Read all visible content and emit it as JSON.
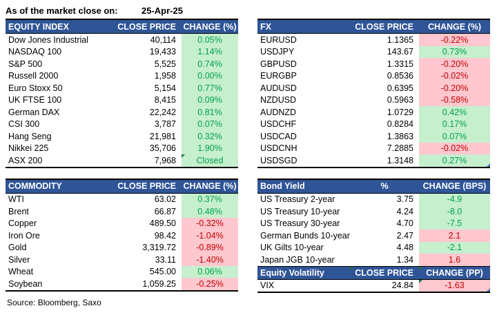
{
  "meta": {
    "title_label": "As of the market close on:",
    "date": "25-Apr-25",
    "source": "Source: Bloomberg, Saxo"
  },
  "colors": {
    "header_bg": "#2F5597",
    "positive_bg": "#C6EFCE",
    "positive_text": "#00A14B",
    "negative_bg": "#FFC7CE",
    "negative_text": "#C00000",
    "comment_marker_green": "#217346",
    "corner_marker_blue": "#4472C4",
    "border": "#000000"
  },
  "tables": {
    "equity_index": {
      "headers": [
        "EQUITY INDEX",
        "CLOSE PRICE",
        "CHANGE (%)"
      ],
      "rows": [
        {
          "label": "Dow Jones Industrial",
          "price": "40,114",
          "change": "0.05%",
          "dir": "pos"
        },
        {
          "label": "NASDAQ 100",
          "price": "19,433",
          "change": "1.14%",
          "dir": "pos"
        },
        {
          "label": "S&P 500",
          "price": "5,525",
          "change": "0.74%",
          "dir": "pos"
        },
        {
          "label": "Russell 2000",
          "price": "1,958",
          "change": "0.00%",
          "dir": "pos"
        },
        {
          "label": "Euro Stoxx 50",
          "price": "5,154",
          "change": "0.77%",
          "dir": "pos"
        },
        {
          "label": "UK FTSE 100",
          "price": "8,415",
          "change": "0.09%",
          "dir": "pos"
        },
        {
          "label": "German DAX",
          "price": "22,242",
          "change": "0.81%",
          "dir": "pos"
        },
        {
          "label": "CSI 300",
          "price": "3,787",
          "change": "0.07%",
          "dir": "pos"
        },
        {
          "label": "Hang Seng",
          "price": "21,981",
          "change": "0.32%",
          "dir": "pos"
        },
        {
          "label": "Nikkei 225",
          "price": "35,706",
          "change": "1.90%",
          "dir": "pos"
        },
        {
          "label": "ASX 200",
          "price": "7,968",
          "change": "Closed",
          "dir": "pos",
          "m_tl": true
        }
      ]
    },
    "fx": {
      "headers": [
        "FX",
        "CLOSE PRICE",
        "CHANGE (%)"
      ],
      "rows": [
        {
          "label": "EURUSD",
          "price": "1.1365",
          "change": "-0.22%",
          "dir": "neg"
        },
        {
          "label": "USDJPY",
          "price": "143.67",
          "change": "0.73%",
          "dir": "pos"
        },
        {
          "label": "GBPUSD",
          "price": "1.3315",
          "change": "-0.20%",
          "dir": "neg"
        },
        {
          "label": "EURGBP",
          "price": "0.8536",
          "change": "-0.02%",
          "dir": "neg"
        },
        {
          "label": "AUDUSD",
          "price": "0.6395",
          "change": "-0.20%",
          "dir": "neg"
        },
        {
          "label": "NZDUSD",
          "price": "0.5963",
          "change": "-0.58%",
          "dir": "neg"
        },
        {
          "label": "AUDNZD",
          "price": "1.0729",
          "change": "0.42%",
          "dir": "pos"
        },
        {
          "label": "USDCHF",
          "price": "0.8284",
          "change": "0.17%",
          "dir": "pos"
        },
        {
          "label": "USDCAD",
          "price": "1.3863",
          "change": "0.07%",
          "dir": "pos"
        },
        {
          "label": "USDCNH",
          "price": "7.2885",
          "change": "-0.02%",
          "dir": "neg"
        },
        {
          "label": "USDSGD",
          "price": "1.3148",
          "change": "0.27%",
          "dir": "pos",
          "m_br": true
        }
      ]
    },
    "commodity": {
      "headers": [
        "COMMODITY",
        "CLOSE PRICE",
        "CHANGE (%)"
      ],
      "rows": [
        {
          "label": "WTI",
          "price": "63.02",
          "change": "0.37%",
          "dir": "pos"
        },
        {
          "label": "Brent",
          "price": "66.87",
          "change": "0.48%",
          "dir": "pos"
        },
        {
          "label": "Copper",
          "price": "489.50",
          "change": "-0.32%",
          "dir": "neg"
        },
        {
          "label": "Iron Ore",
          "price": "98.42",
          "change": "-1.04%",
          "dir": "neg"
        },
        {
          "label": "Gold",
          "price": "3,319.72",
          "change": "-0.89%",
          "dir": "neg"
        },
        {
          "label": "Silver",
          "price": "33.11",
          "change": "-1.40%",
          "dir": "neg"
        },
        {
          "label": "Wheat",
          "price": "545.00",
          "change": "0.06%",
          "dir": "pos"
        },
        {
          "label": "Soybean",
          "price": "1,059.25",
          "change": "-0.25%",
          "dir": "neg"
        }
      ]
    },
    "bond_yield": {
      "headers": [
        "Bond Yield",
        "%",
        "CHANGE (BPS)"
      ],
      "rows": [
        {
          "label": "US Treasury 2-year",
          "price": "3.75",
          "change": "-4.9",
          "dir": "pos"
        },
        {
          "label": "US Treasury 10-year",
          "price": "4.24",
          "change": "-8.0",
          "dir": "pos"
        },
        {
          "label": "US Treasury 30-year",
          "price": "4.70",
          "change": "-7.5",
          "dir": "pos"
        },
        {
          "label": "German Bunds 10-year",
          "price": "2.47",
          "change": "2.1",
          "dir": "neg"
        },
        {
          "label": "UK Gilts 10-year",
          "price": "4.48",
          "change": "-2.1",
          "dir": "pos"
        },
        {
          "label": "Japan JGB 10-year",
          "price": "1.34",
          "change": "1.6",
          "dir": "neg"
        }
      ]
    },
    "equity_volatility": {
      "headers": [
        "Equity Volatility",
        "CLOSE PRICE",
        "CHANGE (PP)"
      ],
      "rows": [
        {
          "label": "VIX",
          "price": "24.84",
          "change": "-1.63",
          "dir": "neg",
          "m_tl": true,
          "m_br": true
        }
      ]
    }
  }
}
